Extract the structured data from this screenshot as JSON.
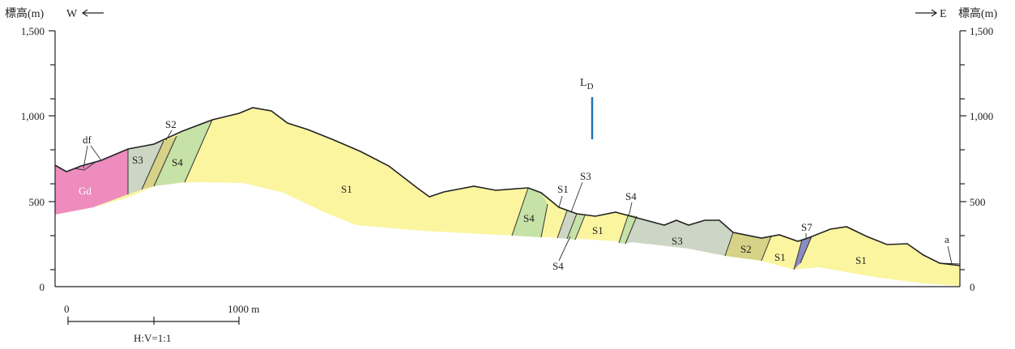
{
  "header": {
    "left_unit": "標高(m)",
    "right_unit": "標高(m)",
    "west": "W",
    "east": "E"
  },
  "elevation_ticks": [
    "1,500",
    "1,000",
    "500",
    "0"
  ],
  "units": [
    {
      "label": "Gd",
      "color": "#ee8cbe"
    },
    {
      "label": "S1",
      "color": "#fbf5a0"
    },
    {
      "label": "S2",
      "color": "#d6d287"
    },
    {
      "label": "S3",
      "color": "#cdd6c4"
    },
    {
      "label": "S4",
      "color": "#c7e2a6"
    },
    {
      "label": "S7",
      "color": "#8c8cc4"
    }
  ],
  "annotations": {
    "df": "df",
    "a": "a",
    "ld": {
      "main": "L",
      "sub": "D"
    }
  },
  "scale_bar": {
    "start": "0",
    "end": "1000 m",
    "ratio": "H:V=1:1"
  }
}
